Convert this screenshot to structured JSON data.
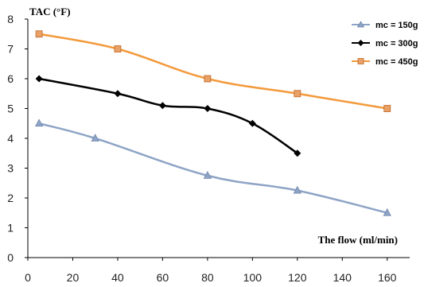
{
  "chart_data": {
    "type": "line",
    "xlabel": "The flow (ml/min)",
    "ylabel": "TAC (°F)",
    "xlim": [
      0,
      170
    ],
    "ylim": [
      0,
      8
    ],
    "x_ticks": [
      "0",
      "20",
      "40",
      "60",
      "80",
      "100",
      "120",
      "140",
      "160"
    ],
    "y_ticks": [
      "0",
      "1",
      "2",
      "3",
      "4",
      "5",
      "6",
      "7",
      "8"
    ],
    "grid": false,
    "legend_position": "top-right",
    "series": [
      {
        "name": "mc = 150g",
        "color": "#8ea4c6",
        "marker": "triangle",
        "marker_color": "#8ea4c6",
        "x": [
          5,
          30,
          80,
          120,
          160
        ],
        "y": [
          4.5,
          4.0,
          2.75,
          2.25,
          1.5
        ]
      },
      {
        "name": "mc = 300g",
        "color": "#000000",
        "marker": "diamond",
        "marker_color": "#000000",
        "x": [
          5,
          40,
          60,
          80,
          100,
          120
        ],
        "y": [
          6.0,
          5.5,
          5.1,
          5.0,
          4.5,
          3.5
        ]
      },
      {
        "name": "mc = 450g",
        "color": "#f39a3c",
        "marker": "square",
        "marker_color": "#e9a168",
        "x": [
          5,
          40,
          80,
          120,
          160
        ],
        "y": [
          7.5,
          7.0,
          6.0,
          5.5,
          5.0
        ]
      }
    ]
  }
}
